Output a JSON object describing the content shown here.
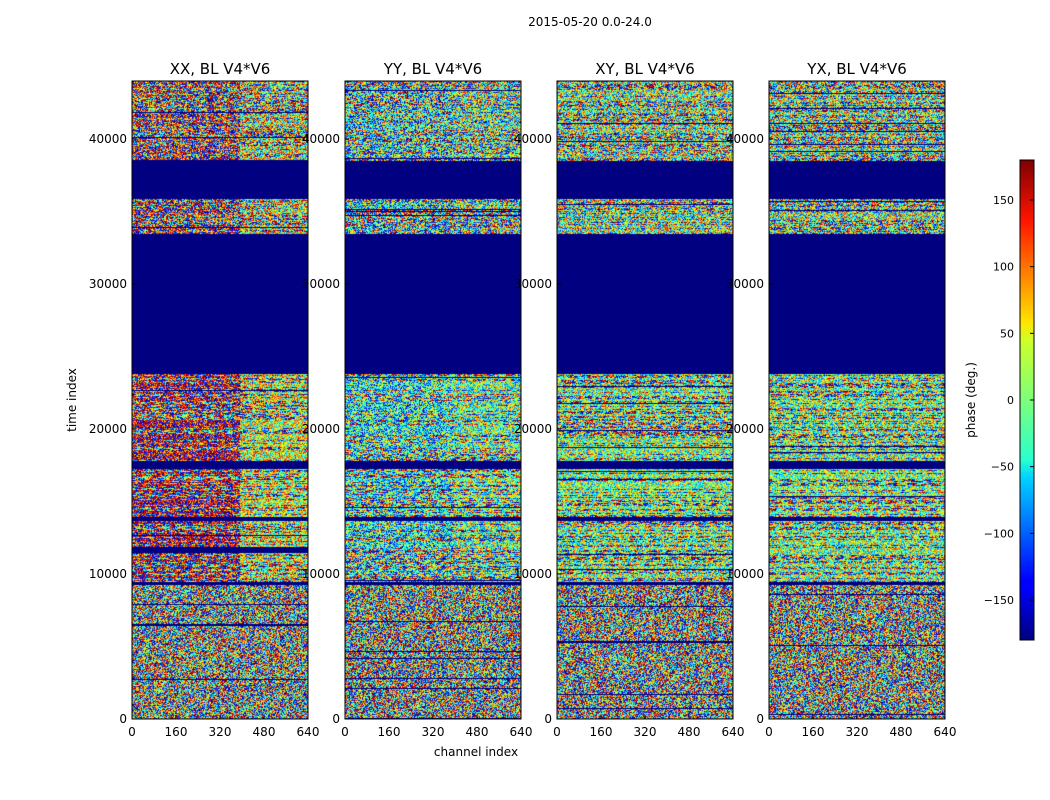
{
  "chart_data": {
    "type": "heatmap",
    "title": "2015-05-20 0.0-24.0",
    "xlabel": "channel index",
    "ylabel": "time index",
    "xlim": [
      0,
      640
    ],
    "ylim": [
      0,
      44000
    ],
    "x_ticks": [
      0,
      160,
      320,
      480,
      640
    ],
    "y_ticks": [
      0,
      10000,
      20000,
      30000,
      40000
    ],
    "colorbar": {
      "label": "phase (deg.)",
      "range": [
        -180,
        180
      ],
      "ticks": [
        -150,
        -100,
        -50,
        0,
        50,
        100,
        150
      ],
      "tick_labels": [
        "−150",
        "−100",
        "−50",
        "0",
        "50",
        "100",
        "150"
      ],
      "colormap": "jet"
    },
    "panels": [
      {
        "name": "XX",
        "title": "XX, BL V4*V6",
        "show_ylabel": true
      },
      {
        "name": "YY",
        "title": "YY, BL V4*V6",
        "show_ylabel": false
      },
      {
        "name": "XY",
        "title": "XY, BL V4*V6",
        "show_ylabel": false
      },
      {
        "name": "YX",
        "title": "YX, BL V4*V6",
        "show_ylabel": false
      }
    ],
    "flagged_value_deg": -180,
    "flagged_ranges": [
      {
        "y": [
          23800,
          33500
        ],
        "panels": [
          "XX",
          "YY",
          "XY",
          "YX"
        ]
      },
      {
        "y": [
          35900,
          38500
        ],
        "panels": [
          "XX",
          "YY",
          "XY",
          "YX"
        ]
      },
      {
        "y": [
          17300,
          17800
        ],
        "panels": [
          "XX",
          "YY",
          "XY",
          "YX"
        ]
      },
      {
        "y": [
          13700,
          14000
        ],
        "panels": [
          "XX",
          "YY",
          "XY",
          "YX"
        ]
      },
      {
        "y": [
          9300,
          9500
        ],
        "panels": [
          "XX",
          "YY",
          "XY",
          "YX"
        ]
      },
      {
        "y": [
          11500,
          11900
        ],
        "panels": [
          "XX"
        ]
      }
    ],
    "bands": [
      {
        "y": [
          0,
          9300
        ],
        "noise": 1.0
      },
      {
        "y": [
          9500,
          13700
        ],
        "noise": 0.6
      },
      {
        "y": [
          14000,
          17300
        ],
        "noise": 0.55
      },
      {
        "y": [
          17800,
          23800
        ],
        "noise": 0.6
      },
      {
        "y": [
          33500,
          35900
        ],
        "noise": 0.7
      },
      {
        "y": [
          38500,
          44000
        ],
        "noise": 0.7
      }
    ],
    "panel_offsets_deg": {
      "XX": 160,
      "YY": -40,
      "XY": 0,
      "YX": 0
    }
  }
}
